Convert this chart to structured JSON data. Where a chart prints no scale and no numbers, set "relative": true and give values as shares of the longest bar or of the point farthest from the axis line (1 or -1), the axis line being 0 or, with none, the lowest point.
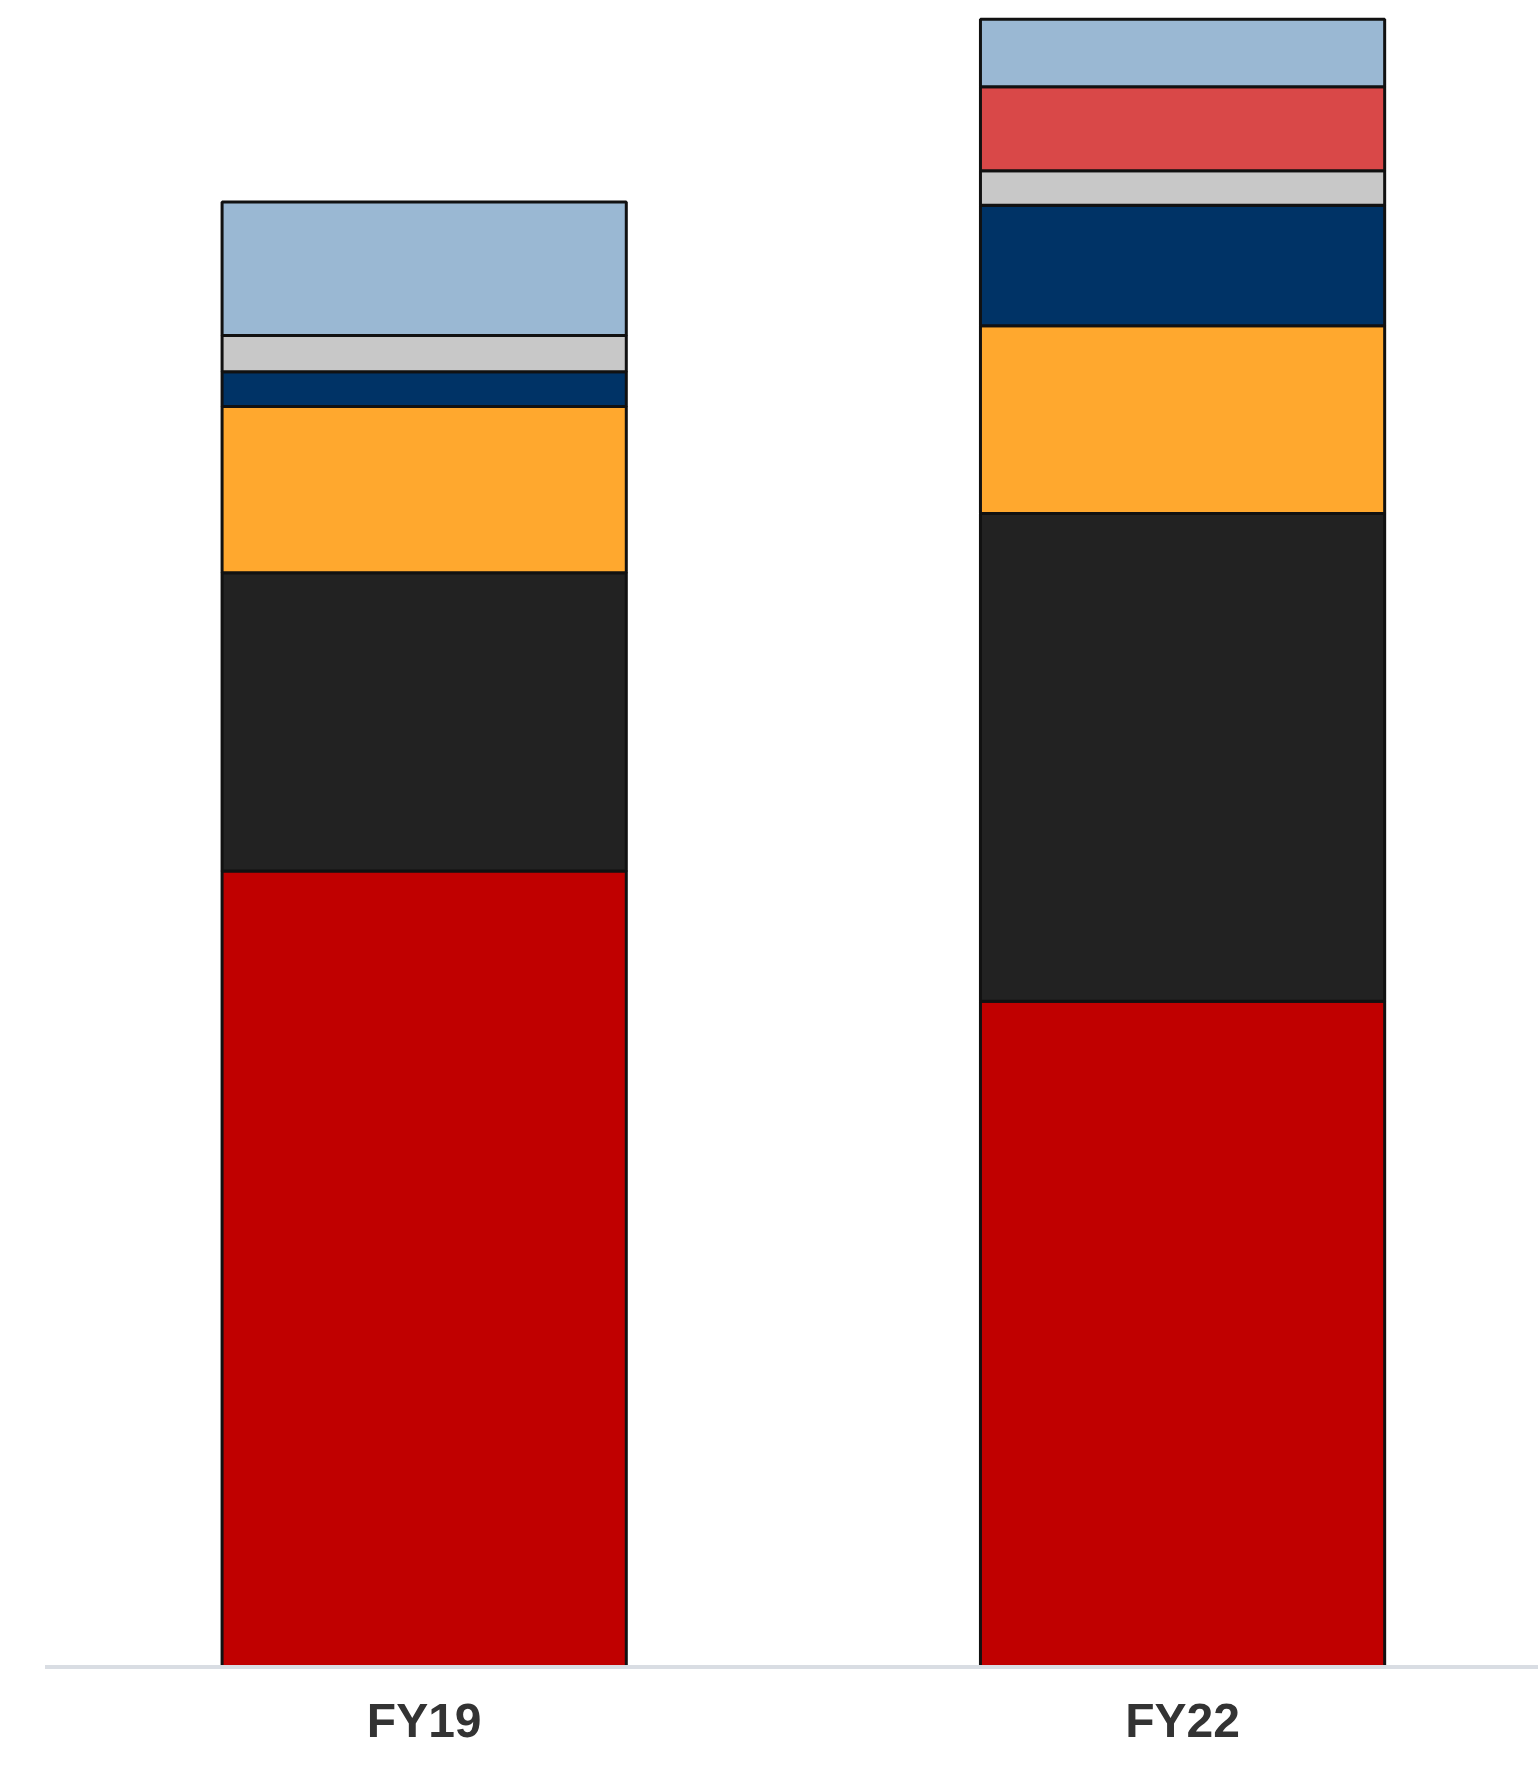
{
  "chart_data": {
    "type": "bar",
    "stacked": true,
    "relative": true,
    "categories": [
      "FY19",
      "FY22"
    ],
    "series": [
      {
        "color": "#c00000",
        "values": [
          0.483,
          0.404
        ]
      },
      {
        "color": "#222222",
        "values": [
          0.181,
          0.296
        ]
      },
      {
        "color": "#ffa82e",
        "values": [
          0.101,
          0.114
        ]
      },
      {
        "color": "#003366",
        "values": [
          0.021,
          0.073
        ]
      },
      {
        "color": "#c8c8c8",
        "values": [
          0.022,
          0.021
        ]
      },
      {
        "color": "#d94848",
        "values": [
          null,
          0.051
        ]
      },
      {
        "color": "#9ab8d3",
        "values": [
          0.081,
          0.041
        ]
      }
    ]
  }
}
